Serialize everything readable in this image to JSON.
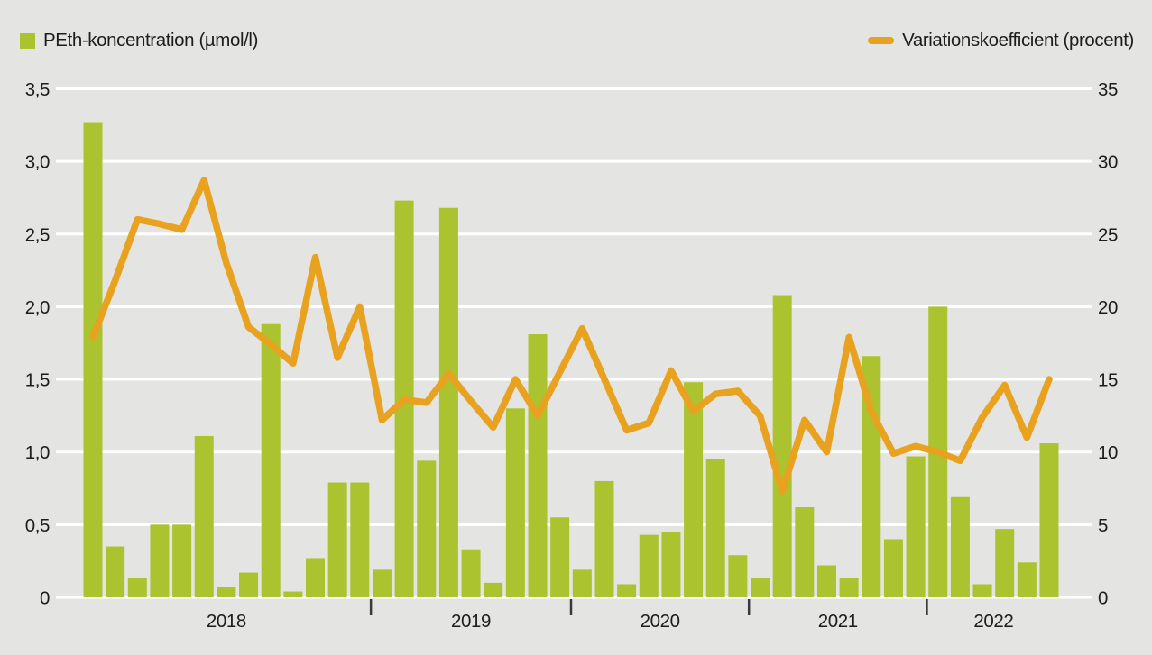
{
  "chart_data": {
    "type": "bar+line",
    "title": "",
    "legend": {
      "bars": "PEth-koncentration (µmol/l)",
      "line": "Variationskoefficient (procent)"
    },
    "y_left": {
      "min": 0,
      "max": 3.5,
      "ticks": [
        "0",
        "0,5",
        "1,0",
        "1,5",
        "2,0",
        "2,5",
        "3,0",
        "3,5"
      ]
    },
    "y_right": {
      "min": 0,
      "max": 35,
      "ticks": [
        "0",
        "5",
        "10",
        "15",
        "20",
        "25",
        "30",
        "35"
      ]
    },
    "grid": "on",
    "legend_position": "top",
    "years": [
      {
        "label": "2018",
        "from": 0,
        "to": 12
      },
      {
        "label": "2019",
        "from": 13,
        "to": 21
      },
      {
        "label": "2020",
        "from": 22,
        "to": 29
      },
      {
        "label": "2021",
        "from": 30,
        "to": 37
      },
      {
        "label": "2022",
        "from": 38,
        "to": 43
      }
    ],
    "series": [
      {
        "name": "PEth-koncentration (µmol/l)",
        "type": "bar",
        "axis": "left",
        "values": [
          3.27,
          0.35,
          0.13,
          0.5,
          0.5,
          1.11,
          0.07,
          0.17,
          1.88,
          0.04,
          0.27,
          0.79,
          0.79,
          0.19,
          2.73,
          0.94,
          2.68,
          0.33,
          0.1,
          1.3,
          1.81,
          0.55,
          0.19,
          0.8,
          0.09,
          0.43,
          0.45,
          1.48,
          0.95,
          0.29,
          0.13,
          2.08,
          0.62,
          0.22,
          0.13,
          1.66,
          0.4,
          0.97,
          2.0,
          0.69,
          0.09,
          0.47,
          0.24,
          1.06
        ]
      },
      {
        "name": "Variationskoefficient (procent)",
        "type": "line",
        "axis": "right",
        "values": [
          17.9,
          21.8,
          26.0,
          25.7,
          25.3,
          28.7,
          23.0,
          18.6,
          17.4,
          16.1,
          23.4,
          16.5,
          20.0,
          12.2,
          13.6,
          13.4,
          15.4,
          13.5,
          11.7,
          15.0,
          12.5,
          15.5,
          18.5,
          15.0,
          11.5,
          12.0,
          15.6,
          12.8,
          14.0,
          14.2,
          12.5,
          7.3,
          12.2,
          10.0,
          17.9,
          12.8,
          9.9,
          10.4,
          10.0,
          9.4,
          12.4,
          14.6,
          11.0,
          15.0
        ]
      }
    ],
    "colors": {
      "bar": "#abc32f",
      "line": "#e8a21f",
      "background": "#e4e4e2",
      "grid": "#ffffff",
      "text": "#1d1d1b",
      "tick": "#3a3a38"
    }
  }
}
